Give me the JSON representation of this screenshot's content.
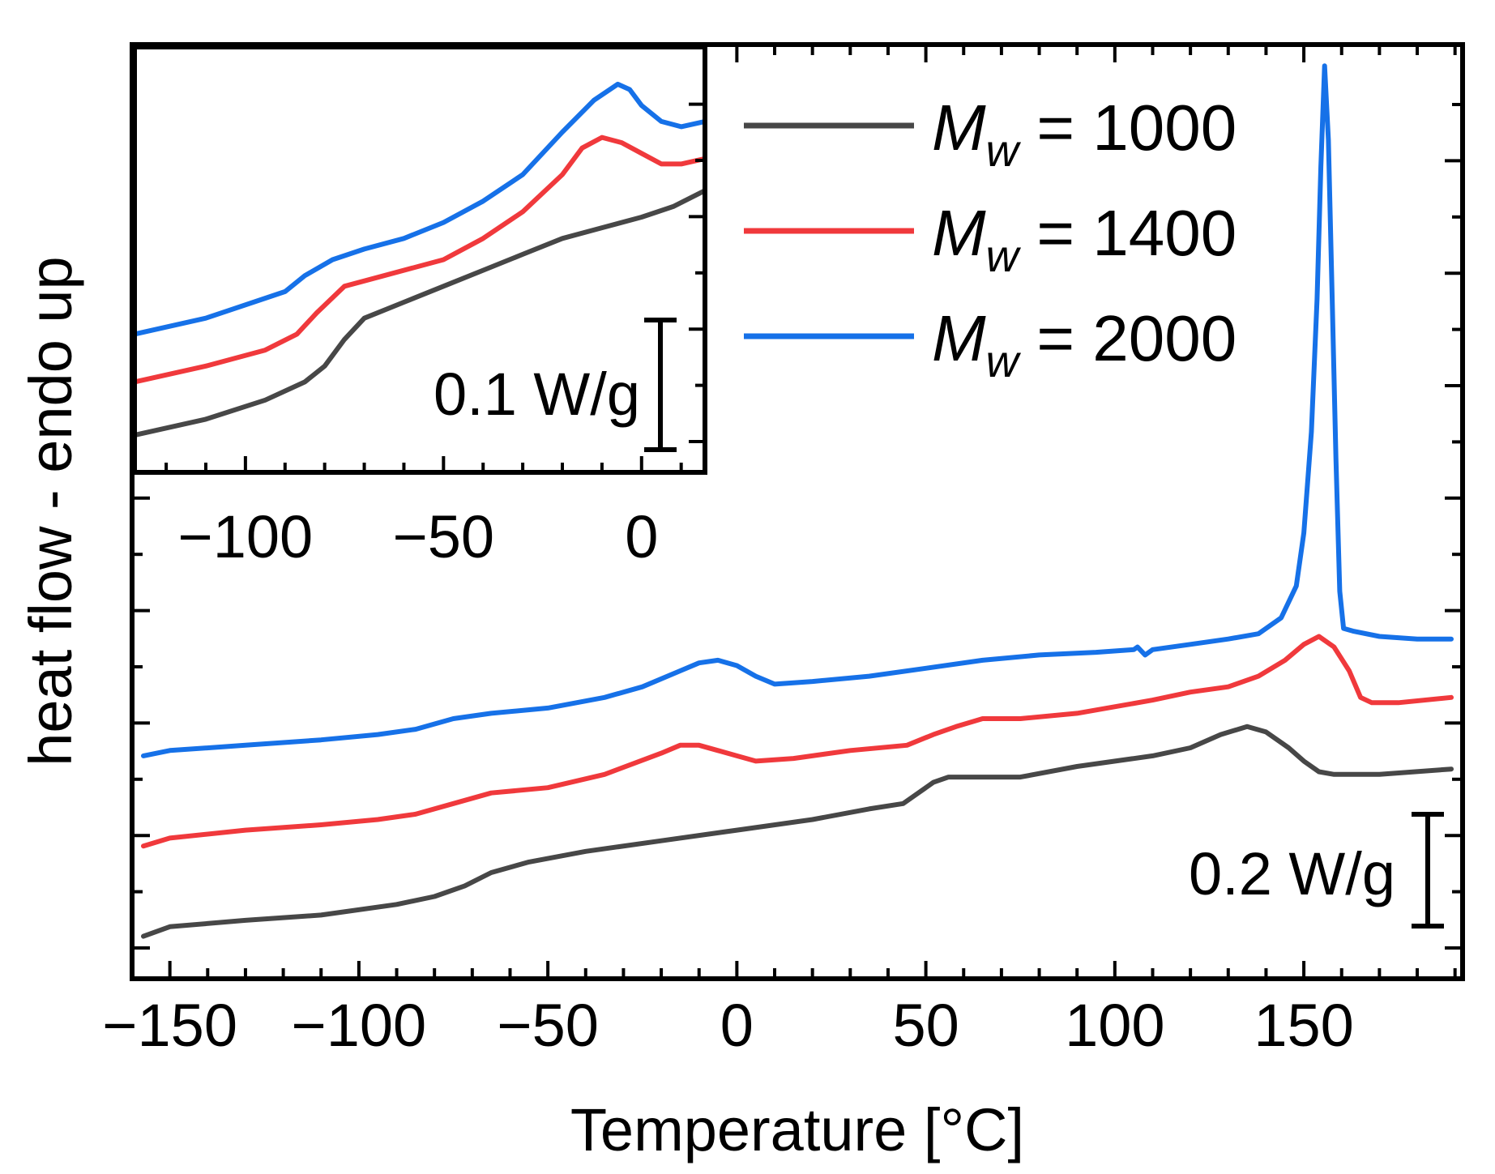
{
  "chart_data": [
    {
      "type": "line",
      "panel": "main",
      "title": "",
      "xlabel": "Temperature [°C]",
      "ylabel": "heat flow - endo up",
      "xlim": [
        -160,
        192
      ],
      "xticks": [
        -150,
        -100,
        -50,
        0,
        50,
        100,
        150
      ],
      "xtick_labels": [
        "−150",
        "−100",
        "−50",
        "0",
        "50",
        "100",
        "150"
      ],
      "ylim": [
        -0.08,
        1.68
      ],
      "y_units": "W/g (relative, arbitrary offset)",
      "grid": false,
      "scale_bar": {
        "label": "0.2 W/g",
        "value": 0.2
      },
      "series": [
        {
          "name": "M_w = 1000",
          "color": "#474747",
          "points": [
            [
              -157,
              0.0
            ],
            [
              -150,
              0.018
            ],
            [
              -130,
              0.03
            ],
            [
              -110,
              0.04
            ],
            [
              -90,
              0.06
            ],
            [
              -80,
              0.075
            ],
            [
              -72,
              0.095
            ],
            [
              -65,
              0.12
            ],
            [
              -55,
              0.14
            ],
            [
              -40,
              0.16
            ],
            [
              -20,
              0.18
            ],
            [
              0,
              0.2
            ],
            [
              20,
              0.22
            ],
            [
              35,
              0.24
            ],
            [
              44,
              0.25
            ],
            [
              48,
              0.27
            ],
            [
              52,
              0.29
            ],
            [
              56,
              0.3
            ],
            [
              65,
              0.3
            ],
            [
              75,
              0.3
            ],
            [
              90,
              0.32
            ],
            [
              110,
              0.34
            ],
            [
              120,
              0.355
            ],
            [
              128,
              0.38
            ],
            [
              135,
              0.395
            ],
            [
              140,
              0.385
            ],
            [
              146,
              0.355
            ],
            [
              150,
              0.33
            ],
            [
              154,
              0.31
            ],
            [
              158,
              0.305
            ],
            [
              170,
              0.305
            ],
            [
              189,
              0.315
            ]
          ]
        },
        {
          "name": "M_w = 1400",
          "color": "#f0393c",
          "points": [
            [
              -157,
              0.17
            ],
            [
              -150,
              0.185
            ],
            [
              -130,
              0.2
            ],
            [
              -110,
              0.21
            ],
            [
              -95,
              0.22
            ],
            [
              -85,
              0.23
            ],
            [
              -75,
              0.25
            ],
            [
              -65,
              0.27
            ],
            [
              -50,
              0.28
            ],
            [
              -35,
              0.305
            ],
            [
              -20,
              0.345
            ],
            [
              -15,
              0.36
            ],
            [
              -10,
              0.36
            ],
            [
              -5,
              0.35
            ],
            [
              0,
              0.34
            ],
            [
              5,
              0.33
            ],
            [
              15,
              0.335
            ],
            [
              30,
              0.35
            ],
            [
              45,
              0.36
            ],
            [
              52,
              0.38
            ],
            [
              58,
              0.395
            ],
            [
              65,
              0.41
            ],
            [
              75,
              0.41
            ],
            [
              90,
              0.42
            ],
            [
              110,
              0.445
            ],
            [
              120,
              0.46
            ],
            [
              130,
              0.47
            ],
            [
              138,
              0.49
            ],
            [
              145,
              0.52
            ],
            [
              150,
              0.55
            ],
            [
              154,
              0.565
            ],
            [
              158,
              0.545
            ],
            [
              162,
              0.5
            ],
            [
              165,
              0.45
            ],
            [
              168,
              0.44
            ],
            [
              175,
              0.44
            ],
            [
              189,
              0.45
            ]
          ]
        },
        {
          "name": "M_w = 2000",
          "color": "#1671e8",
          "points": [
            [
              -157,
              0.34
            ],
            [
              -150,
              0.35
            ],
            [
              -130,
              0.36
            ],
            [
              -110,
              0.37
            ],
            [
              -95,
              0.38
            ],
            [
              -85,
              0.39
            ],
            [
              -75,
              0.41
            ],
            [
              -65,
              0.42
            ],
            [
              -50,
              0.43
            ],
            [
              -35,
              0.45
            ],
            [
              -25,
              0.47
            ],
            [
              -15,
              0.5
            ],
            [
              -10,
              0.515
            ],
            [
              -5,
              0.52
            ],
            [
              0,
              0.51
            ],
            [
              5,
              0.49
            ],
            [
              10,
              0.475
            ],
            [
              20,
              0.48
            ],
            [
              35,
              0.49
            ],
            [
              50,
              0.505
            ],
            [
              65,
              0.52
            ],
            [
              80,
              0.53
            ],
            [
              95,
              0.535
            ],
            [
              105,
              0.54
            ],
            [
              106,
              0.545
            ],
            [
              108,
              0.53
            ],
            [
              110,
              0.54
            ],
            [
              120,
              0.55
            ],
            [
              130,
              0.56
            ],
            [
              138,
              0.57
            ],
            [
              144,
              0.6
            ],
            [
              148,
              0.66
            ],
            [
              150,
              0.76
            ],
            [
              152,
              0.95
            ],
            [
              153.5,
              1.2
            ],
            [
              154.5,
              1.45
            ],
            [
              155.5,
              1.64
            ],
            [
              156.5,
              1.5
            ],
            [
              157.5,
              1.2
            ],
            [
              158.5,
              0.9
            ],
            [
              159.5,
              0.65
            ],
            [
              160.5,
              0.58
            ],
            [
              163,
              0.575
            ],
            [
              170,
              0.565
            ],
            [
              180,
              0.56
            ],
            [
              189,
              0.56
            ]
          ]
        }
      ]
    },
    {
      "type": "line",
      "panel": "inset",
      "title": "",
      "xlabel": "",
      "ylabel": "",
      "xlim": [
        -128,
        16
      ],
      "xticks": [
        -100,
        -50,
        0
      ],
      "xtick_labels": [
        "−100",
        "−50",
        "0"
      ],
      "ylim": [
        0,
        0.4
      ],
      "y_units": "W/g (relative, arbitrary offset)",
      "grid": false,
      "scale_bar": {
        "label": "0.1 W/g",
        "value": 0.1
      },
      "series": [
        {
          "name": "M_w = 1000",
          "color": "#474747",
          "points": [
            [
              -128,
              0.035
            ],
            [
              -110,
              0.05
            ],
            [
              -95,
              0.068
            ],
            [
              -85,
              0.085
            ],
            [
              -80,
              0.1
            ],
            [
              -75,
              0.125
            ],
            [
              -70,
              0.145
            ],
            [
              -60,
              0.16
            ],
            [
              -50,
              0.175
            ],
            [
              -40,
              0.19
            ],
            [
              -30,
              0.205
            ],
            [
              -20,
              0.22
            ],
            [
              -10,
              0.23
            ],
            [
              0,
              0.24
            ],
            [
              8,
              0.25
            ],
            [
              16,
              0.265
            ]
          ]
        },
        {
          "name": "M_w = 1400",
          "color": "#f0393c",
          "points": [
            [
              -128,
              0.085
            ],
            [
              -110,
              0.1
            ],
            [
              -95,
              0.115
            ],
            [
              -87,
              0.13
            ],
            [
              -82,
              0.15
            ],
            [
              -75,
              0.175
            ],
            [
              -65,
              0.185
            ],
            [
              -50,
              0.2
            ],
            [
              -40,
              0.22
            ],
            [
              -30,
              0.245
            ],
            [
              -20,
              0.28
            ],
            [
              -15,
              0.305
            ],
            [
              -10,
              0.315
            ],
            [
              -5,
              0.31
            ],
            [
              0,
              0.3
            ],
            [
              5,
              0.29
            ],
            [
              10,
              0.29
            ],
            [
              16,
              0.295
            ]
          ]
        },
        {
          "name": "M_w = 2000",
          "color": "#1671e8",
          "points": [
            [
              -128,
              0.13
            ],
            [
              -110,
              0.145
            ],
            [
              -98,
              0.16
            ],
            [
              -90,
              0.17
            ],
            [
              -85,
              0.185
            ],
            [
              -78,
              0.2
            ],
            [
              -70,
              0.21
            ],
            [
              -60,
              0.22
            ],
            [
              -50,
              0.235
            ],
            [
              -40,
              0.255
            ],
            [
              -30,
              0.28
            ],
            [
              -20,
              0.32
            ],
            [
              -12,
              0.35
            ],
            [
              -6,
              0.365
            ],
            [
              -3,
              0.36
            ],
            [
              0,
              0.345
            ],
            [
              5,
              0.33
            ],
            [
              10,
              0.325
            ],
            [
              16,
              0.33
            ]
          ]
        }
      ]
    }
  ],
  "legend": {
    "items": [
      {
        "prefix": "M",
        "subscript": "w",
        "suffix": " = 1000",
        "color": "#474747"
      },
      {
        "prefix": "M",
        "subscript": "w",
        "suffix": " = 1400",
        "color": "#f0393c"
      },
      {
        "prefix": "M",
        "subscript": "w",
        "suffix": " = 2000",
        "color": "#1671e8"
      }
    ]
  }
}
